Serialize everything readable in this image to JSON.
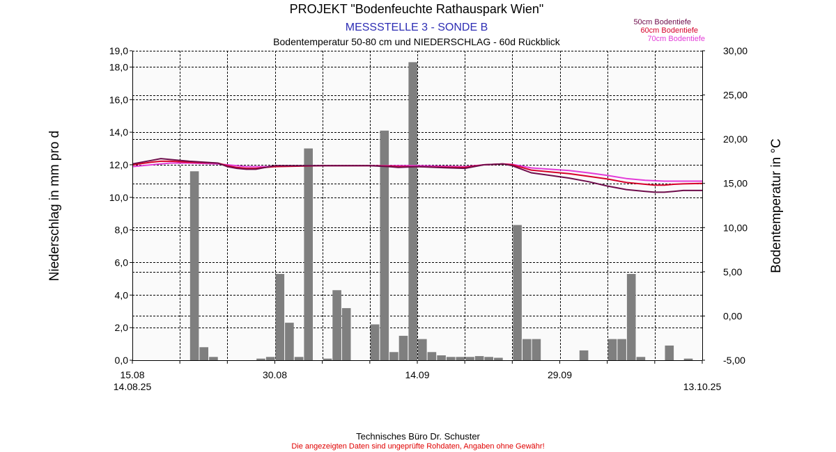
{
  "colors": {
    "rain_bar": "#7f7f7f",
    "subtitle": "#2d2db4",
    "disclaimer": "#e00000",
    "probe_50": "#6e0c4b",
    "probe_60": "#d6002a",
    "probe_70": "#e33bd8",
    "plot_bg": "#fafafa"
  },
  "header": {
    "title": "PROJEKT \"Bodenfeuchte Rathauspark Wien\"",
    "subtitle": "MESSSTELLE 3 - SONDE B",
    "description": "Bodentemperatur 50-80 cm und NIEDERSCHLAG - 60d Rückblick"
  },
  "footer": {
    "company": "Technisches Büro Dr. Schuster",
    "disclaimer": "Die angezeigten Daten sind ungeprüfte Rohdaten, Angaben ohne Gewähr!"
  },
  "chart_data": {
    "type": "bar",
    "grid": true,
    "legend_position": "top-right",
    "x_axis": {
      "range_days": [
        0,
        60
      ],
      "ticks": [
        {
          "day": 0,
          "label": "15.08"
        },
        {
          "day": 15,
          "label": "30.08"
        },
        {
          "day": 30,
          "label": "14.09"
        },
        {
          "day": 45,
          "label": "29.09"
        }
      ],
      "start_label": "14.08.25",
      "end_label": "13.10.25"
    },
    "y_left": {
      "label": "Niederschlag in mm pro d",
      "range": [
        0,
        19
      ],
      "ticks": [
        "0,0",
        "2,0",
        "4,0",
        "6,0",
        "8,0",
        "10,0",
        "12,0",
        "14,0",
        "16,0",
        "18,0",
        "19,0"
      ]
    },
    "y_right": {
      "label": "Bodentemperatur in °C",
      "range": [
        -5,
        30
      ],
      "ticks": [
        "-5,00",
        "0,00",
        "5,00",
        "10,00",
        "15,00",
        "20,00",
        "25,00",
        "30,00"
      ]
    },
    "precipitation": {
      "name": "Niederschlag",
      "values": [
        0,
        0,
        0,
        0,
        0,
        0,
        11.6,
        0.8,
        0.2,
        0,
        0,
        0,
        0,
        0.1,
        0.2,
        5.3,
        2.3,
        0.2,
        13.0,
        0,
        0.1,
        4.3,
        3.2,
        0,
        0,
        2.2,
        14.1,
        0.5,
        1.5,
        18.3,
        1.3,
        0.5,
        0.3,
        0.2,
        0.2,
        0.2,
        0.25,
        0.2,
        0.15,
        0,
        8.3,
        1.3,
        1.3,
        0,
        0,
        0,
        0,
        0.6,
        0,
        0,
        1.3,
        1.3,
        5.3,
        0.2,
        0,
        0,
        0.9,
        0,
        0.1,
        0
      ]
    },
    "temperature_series": [
      {
        "name": "50cm Bodentiefe",
        "color": "#6e0c4b",
        "x": [
          0,
          2,
          3,
          4,
          6,
          9,
          10,
          11,
          12,
          13,
          14,
          15,
          20,
          25,
          27,
          28,
          30,
          32,
          35,
          37,
          39,
          40,
          41,
          42,
          44,
          46,
          48,
          50,
          52,
          54,
          55,
          56,
          57,
          58,
          60
        ],
        "y": [
          17.2,
          17.6,
          17.8,
          17.7,
          17.5,
          17.3,
          16.9,
          16.7,
          16.6,
          16.6,
          16.8,
          17.0,
          17.0,
          17.0,
          16.9,
          16.8,
          16.9,
          16.8,
          16.7,
          17.1,
          17.2,
          17.0,
          16.6,
          16.2,
          15.9,
          15.6,
          15.2,
          14.7,
          14.3,
          14.1,
          14.0,
          14.0,
          14.1,
          14.2,
          14.2
        ]
      },
      {
        "name": "60cm Bodentiefe",
        "color": "#d6002a",
        "x": [
          0,
          2,
          3,
          4,
          6,
          9,
          10,
          11,
          12,
          13,
          14,
          15,
          20,
          25,
          27,
          28,
          30,
          32,
          35,
          37,
          39,
          40,
          41,
          42,
          44,
          46,
          48,
          50,
          52,
          54,
          55,
          56,
          57,
          58,
          60
        ],
        "y": [
          17.1,
          17.4,
          17.5,
          17.5,
          17.4,
          17.3,
          17.0,
          16.8,
          16.7,
          16.7,
          16.8,
          16.9,
          17.0,
          17.0,
          16.95,
          16.9,
          16.9,
          16.85,
          16.8,
          17.1,
          17.2,
          17.1,
          16.8,
          16.5,
          16.3,
          16.1,
          15.8,
          15.5,
          15.1,
          14.9,
          14.8,
          14.8,
          14.9,
          14.95,
          15.0
        ]
      },
      {
        "name": "70cm Bodentiefe",
        "color": "#e33bd8",
        "x": [
          0,
          2,
          3,
          4,
          6,
          9,
          10,
          11,
          12,
          13,
          14,
          15,
          20,
          25,
          27,
          28,
          30,
          32,
          35,
          37,
          39,
          40,
          41,
          42,
          44,
          46,
          48,
          50,
          52,
          54,
          55,
          56,
          57,
          58,
          60
        ],
        "y": [
          16.9,
          17.1,
          17.2,
          17.3,
          17.3,
          17.2,
          17.1,
          17.0,
          16.9,
          16.9,
          16.9,
          16.95,
          17.0,
          17.0,
          17.0,
          17.0,
          17.0,
          16.95,
          16.9,
          17.1,
          17.2,
          17.15,
          16.95,
          16.75,
          16.6,
          16.45,
          16.2,
          15.9,
          15.55,
          15.35,
          15.3,
          15.25,
          15.25,
          15.25,
          15.25
        ]
      }
    ]
  }
}
